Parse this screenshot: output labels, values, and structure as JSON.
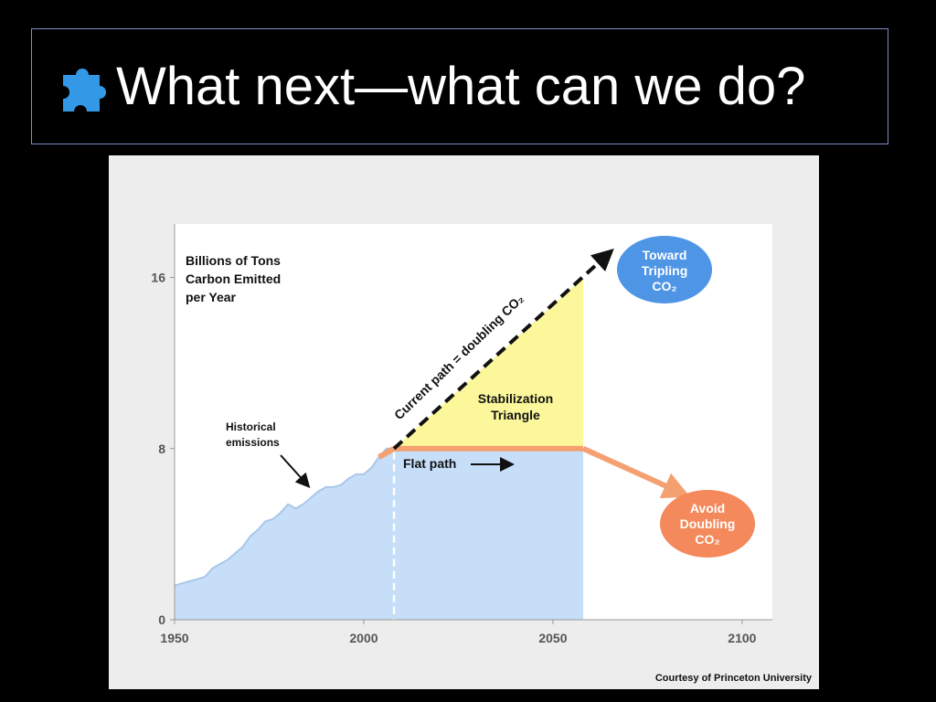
{
  "slide": {
    "title": "What next—what can we do?",
    "title_icon": "puzzle-piece-icon"
  },
  "credit": "Courtesy of Princeton University",
  "colors": {
    "historical_fill": "#c7def8",
    "triangle_fill": "#fbf79a",
    "flat_path": "#f4a070",
    "current_path": "#111111",
    "tripling_bubble": "#4f95e6",
    "doubling_bubble": "#f4895b",
    "puzzle_icon": "#3399e6"
  },
  "chart_data": {
    "type": "area",
    "ylabel_lines": [
      "Billions of Tons",
      "Carbon Emitted",
      "per Year"
    ],
    "x_ticks": [
      "1950",
      "2000",
      "2050",
      "2100"
    ],
    "y_ticks": [
      "0",
      "8",
      "16"
    ],
    "xlim": [
      1950,
      2108
    ],
    "ylim": [
      0,
      18.5
    ],
    "series": [
      {
        "name": "Historical emissions",
        "x": [
          1950,
          1952,
          1954,
          1956,
          1958,
          1960,
          1962,
          1964,
          1966,
          1968,
          1970,
          1972,
          1974,
          1976,
          1978,
          1980,
          1982,
          1984,
          1986,
          1988,
          1990,
          1992,
          1994,
          1996,
          1998,
          2000,
          2002,
          2004,
          2006,
          2008
        ],
        "y": [
          1.6,
          1.7,
          1.8,
          1.9,
          2.0,
          2.4,
          2.6,
          2.8,
          3.1,
          3.4,
          3.9,
          4.2,
          4.6,
          4.7,
          5.0,
          5.4,
          5.2,
          5.4,
          5.7,
          6.0,
          6.2,
          6.2,
          6.3,
          6.6,
          6.8,
          6.8,
          7.1,
          7.6,
          8.0,
          8.0
        ]
      },
      {
        "name": "Flat path",
        "x": [
          2008,
          2058,
          2083
        ],
        "y": [
          8,
          8,
          6
        ]
      },
      {
        "name": "Current path = doubling CO₂",
        "x": [
          2008,
          2058,
          2064
        ],
        "y": [
          8,
          16,
          17
        ]
      }
    ],
    "regions": {
      "stabilization_triangle": {
        "x": [
          2008,
          2058,
          2058
        ],
        "y": [
          8,
          16,
          8
        ]
      },
      "historical_area_end_x": 2058,
      "divider_x": 2008
    },
    "annotations": {
      "historical": [
        "Historical",
        "emissions"
      ],
      "triangle": [
        "Stabilization",
        "Triangle"
      ],
      "flat_path": "Flat path",
      "current_path": "Current path = doubling CO₂",
      "tripling": [
        "Toward",
        "Tripling",
        "CO₂"
      ],
      "doubling": [
        "Avoid",
        "Doubling",
        "CO₂"
      ]
    },
    "grid": false
  }
}
